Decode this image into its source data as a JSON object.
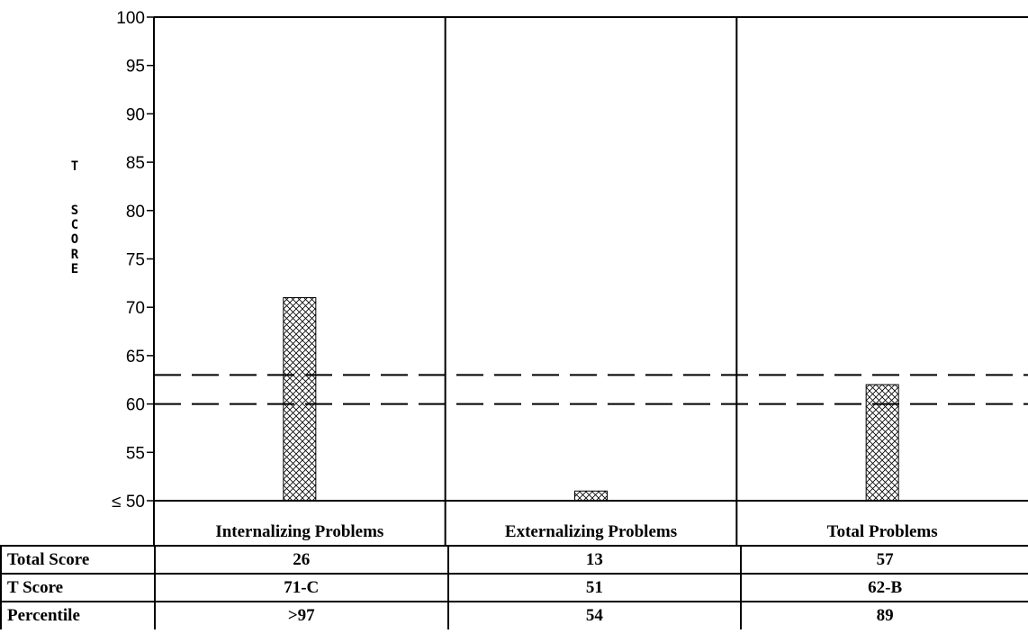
{
  "chart_data": {
    "type": "bar",
    "categories": [
      "Internalizing Problems",
      "Externalizing Problems",
      "Total Problems"
    ],
    "values": [
      71,
      51,
      62
    ],
    "ylim": [
      50,
      100
    ],
    "yticks": [
      50,
      55,
      60,
      65,
      70,
      75,
      80,
      85,
      90,
      95,
      100
    ],
    "ytick_labels": [
      "≤ 50",
      "55",
      "60",
      "65",
      "70",
      "75",
      "80",
      "85",
      "90",
      "95",
      "100"
    ],
    "ylabel": "T SCORE",
    "ylabel_letters": [
      "T",
      "S",
      "C",
      "O",
      "R",
      "E"
    ],
    "reference_lines": [
      60,
      63
    ],
    "bar_fill": "crosshatch",
    "colors": {
      "bar_outline": "#000000",
      "hatch": "#000000",
      "background": "#ffffff"
    }
  },
  "score_table": {
    "rows": [
      {
        "label": "Total Score",
        "values": [
          "26",
          "13",
          "57"
        ]
      },
      {
        "label": "T Score",
        "values": [
          "71-C",
          "51",
          "62-B"
        ]
      },
      {
        "label": "Percentile",
        "values": [
          ">97",
          "54",
          "89"
        ]
      }
    ]
  }
}
